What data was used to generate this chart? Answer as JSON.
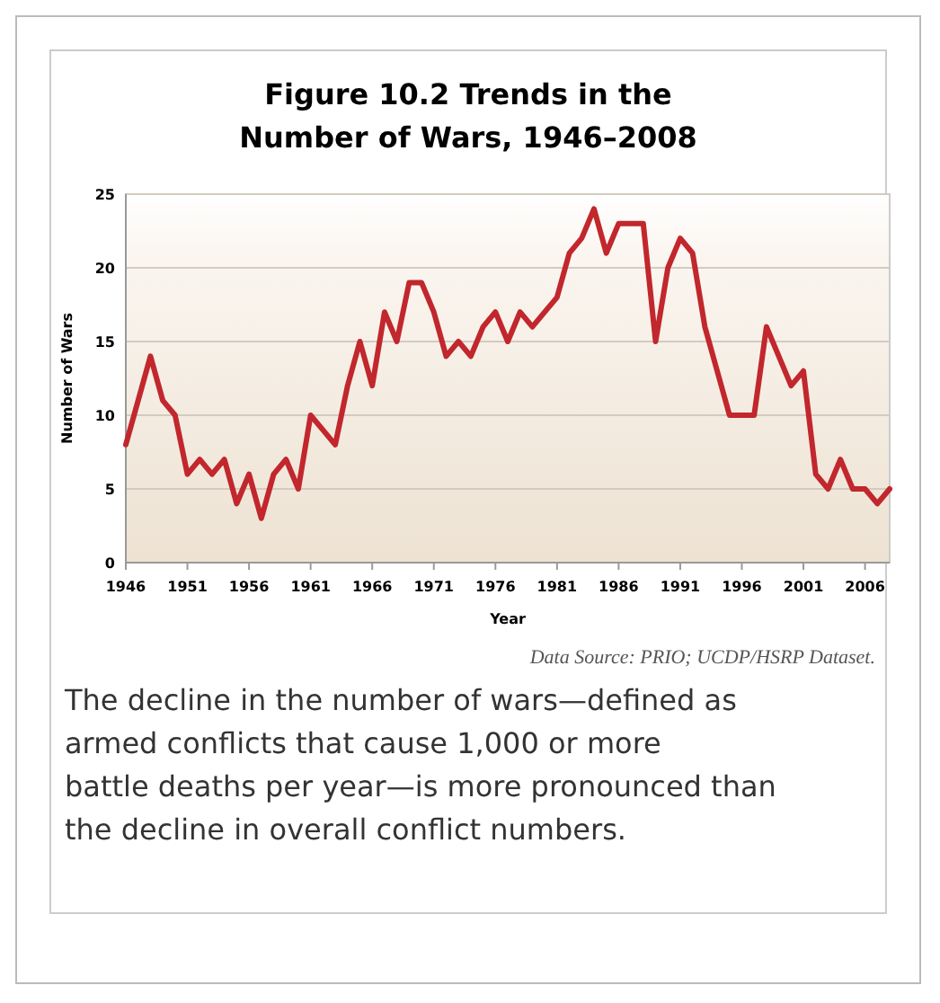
{
  "chart_data": {
    "type": "line",
    "title": "Figure 10.2 Trends in the Number of Wars, 1946–2008",
    "xlabel": "Year",
    "ylabel": "Number of Wars",
    "x": [
      1946,
      1947,
      1948,
      1949,
      1950,
      1951,
      1952,
      1953,
      1954,
      1955,
      1956,
      1957,
      1958,
      1959,
      1960,
      1961,
      1962,
      1963,
      1964,
      1965,
      1966,
      1967,
      1968,
      1969,
      1970,
      1971,
      1972,
      1973,
      1974,
      1975,
      1976,
      1977,
      1978,
      1979,
      1980,
      1981,
      1982,
      1983,
      1984,
      1985,
      1986,
      1987,
      1988,
      1989,
      1990,
      1991,
      1992,
      1993,
      1994,
      1995,
      1996,
      1997,
      1998,
      1999,
      2000,
      2001,
      2002,
      2003,
      2004,
      2005,
      2006,
      2007,
      2008
    ],
    "series": [
      {
        "color": "#c1272d",
        "values": [
          8,
          11,
          14,
          11,
          10,
          6,
          7,
          6,
          7,
          4,
          6,
          3,
          6,
          7,
          5,
          10,
          9,
          8,
          12,
          15,
          12,
          17,
          15,
          19,
          19,
          17,
          14,
          15,
          14,
          16,
          17,
          15,
          17,
          16,
          17,
          18,
          21,
          22,
          24,
          21,
          23,
          23,
          23,
          15,
          20,
          22,
          21,
          16,
          13,
          10,
          10,
          10,
          16,
          14,
          12,
          13,
          6,
          5,
          7,
          5,
          5,
          4,
          5
        ]
      }
    ],
    "xlim": [
      1946,
      2008
    ],
    "xticks": [
      1946,
      1951,
      1956,
      1961,
      1966,
      1971,
      1976,
      1981,
      1986,
      1991,
      1996,
      2001,
      2006
    ],
    "ylim": [
      0,
      25
    ],
    "yticks": [
      0,
      5,
      10,
      15,
      20,
      25
    ],
    "grid": "y",
    "marker": "none",
    "line_style": "solid",
    "annotations": [
      "Data Source: PRIO; UCDP/HSRP Dataset.",
      "The decline in the number of wars—defined as armed conflicts that cause 1,000 or more battle deaths per year—is more pronounced than the decline in overall conflict numbers."
    ]
  }
}
